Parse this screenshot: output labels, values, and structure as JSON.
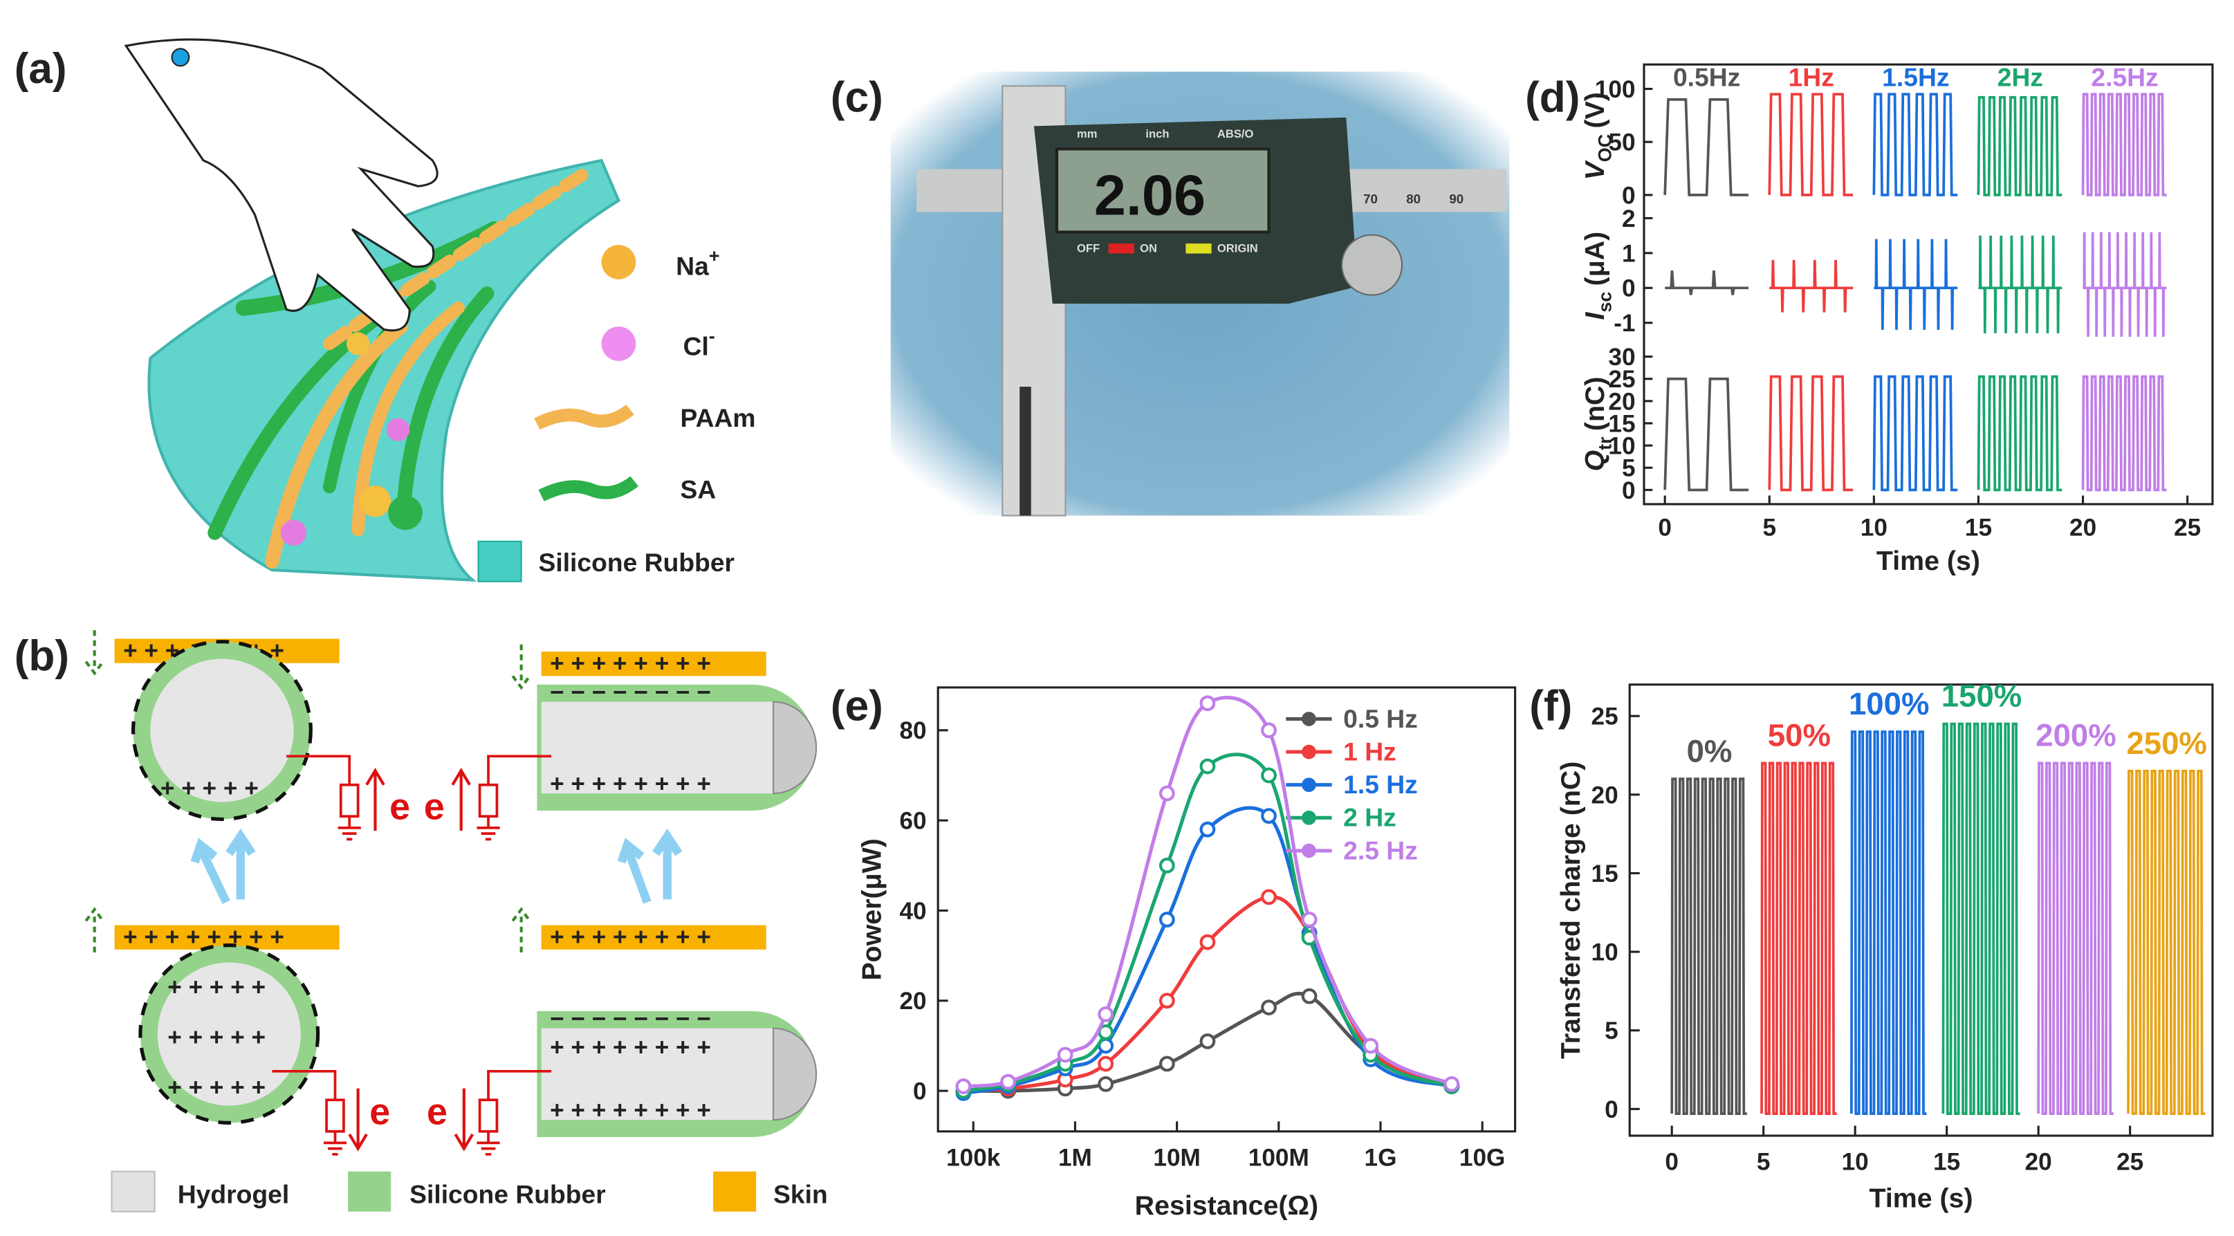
{
  "panel_a": {
    "label": "(a)",
    "ions": [
      {
        "name": "Na",
        "charge": "+"
      },
      {
        "name": "Cl",
        "charge": "-"
      }
    ],
    "materials": [
      "PAAm",
      "SA",
      "Silicone Rubber"
    ]
  },
  "panel_b": {
    "label": "(b)",
    "charges": {
      "plus": "+ + + + + + + +",
      "minus": "− − − − − − − −",
      "inner_plus": "+ + + + +"
    },
    "electron": "e",
    "legend": [
      "Hydrogel",
      "Silicone Rubber",
      "Skin"
    ]
  },
  "panel_c": {
    "label": "(c)",
    "reading": "2.06",
    "caliper_labels": [
      "mm",
      "inch",
      "ABS/O",
      "OFF",
      "ON",
      "ORIGIN"
    ],
    "scale_labels": [
      "70",
      "80",
      "90"
    ]
  },
  "chart_data": [
    {
      "type": "signal_stack",
      "panel_label": "(d)",
      "xlabel": "Time (s)",
      "xlim": [
        -1,
        26.2
      ],
      "xticks": [
        0,
        5,
        10,
        15,
        20,
        25
      ],
      "series": [
        {
          "name": "0.5Hz",
          "color": "#555555",
          "x": [
            0,
            4
          ],
          "cycles": 2
        },
        {
          "name": "1Hz",
          "color": "#f03c3c",
          "x": [
            5,
            9
          ],
          "cycles": 4
        },
        {
          "name": "1.5Hz",
          "color": "#1a6fdc",
          "x": [
            10,
            14
          ],
          "cycles": 6
        },
        {
          "name": "2Hz",
          "color": "#1aa66e",
          "x": [
            15,
            19
          ],
          "cycles": 8
        },
        {
          "name": "2.5Hz",
          "color": "#c07ee8",
          "x": [
            20,
            24
          ],
          "cycles": 10
        }
      ],
      "rows": [
        {
          "label": "V",
          "sub": "OC",
          "unit": "(V)",
          "kind": "pulse",
          "ylim": [
            -12,
            123
          ],
          "yticks": [
            0,
            50,
            100
          ],
          "peaks": [
            90,
            95,
            95,
            92,
            95
          ]
        },
        {
          "label": "I",
          "sub": "sc",
          "unit": "(μA)",
          "kind": "spike",
          "ylim": [
            -1.6,
            2.3
          ],
          "yticks": [
            -1,
            0,
            1,
            2
          ],
          "peaks": [
            0.5,
            0.8,
            1.4,
            1.5,
            1.6
          ],
          "troughs": [
            -0.2,
            -0.7,
            -1.2,
            -1.3,
            -1.4
          ]
        },
        {
          "label": "Q",
          "sub": "tr",
          "unit": "(nC)",
          "kind": "pulse",
          "ylim": [
            -3.2,
            32.9
          ],
          "yticks": [
            0,
            5,
            10,
            15,
            20,
            25,
            30
          ],
          "peaks": [
            25,
            25.5,
            25.5,
            25.5,
            25.5
          ]
        }
      ]
    },
    {
      "type": "line",
      "panel_label": "(e)",
      "xlabel": "Resistance(Ω)",
      "ylabel": "Power(μW)",
      "xscale": "log",
      "legend": "upper right",
      "x": [
        80000,
        220000,
        800000,
        2000000,
        8000000,
        20000000,
        80000000,
        200000000,
        800000000,
        5000000000
      ],
      "xlim": [
        45000,
        21000000000
      ],
      "xticks": [
        {
          "value": 100000,
          "label": "100k"
        },
        {
          "value": 1000000,
          "label": "1M"
        },
        {
          "value": 10000000,
          "label": "10M"
        },
        {
          "value": 100000000,
          "label": "100M"
        },
        {
          "value": 1000000000,
          "label": "1G"
        },
        {
          "value": 10000000000,
          "label": "10G"
        }
      ],
      "ylim": [
        -9,
        89.5
      ],
      "yticks": [
        0,
        20,
        40,
        60,
        80
      ],
      "series": [
        {
          "name": "0.5 Hz",
          "color": "#555555",
          "values": [
            0,
            0,
            0.5,
            1.5,
            6,
            11,
            18.5,
            21,
            8,
            1
          ]
        },
        {
          "name": "1 Hz",
          "color": "#f03c3c",
          "values": [
            0,
            0.5,
            2.5,
            6,
            20,
            33,
            43,
            35,
            9,
            1
          ]
        },
        {
          "name": "1.5 Hz",
          "color": "#1a6fdc",
          "values": [
            -0.5,
            1,
            5,
            10,
            38,
            58,
            61,
            35,
            7,
            1
          ]
        },
        {
          "name": "2 Hz",
          "color": "#1aa66e",
          "values": [
            0,
            1.5,
            6,
            13,
            50,
            72,
            70,
            34,
            8,
            1
          ]
        },
        {
          "name": "2.5 Hz",
          "color": "#c07ee8",
          "values": [
            1,
            2,
            8,
            17,
            66,
            86,
            80,
            38,
            10,
            1.5
          ]
        }
      ]
    },
    {
      "type": "signal",
      "panel_label": "(f)",
      "xlabel": "Time (s)",
      "ylabel": "Transfered charge (nC)",
      "xlim": [
        -2.3,
        29.5
      ],
      "xticks": [
        0,
        5,
        10,
        15,
        20,
        25
      ],
      "ylim": [
        -1.7,
        27
      ],
      "yticks": [
        0,
        5,
        10,
        15,
        20,
        25
      ],
      "series": [
        {
          "name": "0%",
          "color": "#555555",
          "x": [
            0,
            4.1
          ],
          "peak": 21,
          "min": -0.3,
          "cycles": 10
        },
        {
          "name": "50%",
          "color": "#f03c3c",
          "x": [
            4.9,
            9
          ],
          "peak": 22,
          "min": -0.3,
          "cycles": 10
        },
        {
          "name": "100%",
          "color": "#1a6fdc",
          "x": [
            9.8,
            13.9
          ],
          "peak": 24,
          "min": -0.3,
          "cycles": 10
        },
        {
          "name": "150%",
          "color": "#1aa66e",
          "x": [
            14.8,
            19
          ],
          "peak": 24.5,
          "min": -0.3,
          "cycles": 10
        },
        {
          "name": "200%",
          "color": "#c07ee8",
          "x": [
            20,
            24.1
          ],
          "peak": 22,
          "min": -0.3,
          "cycles": 10
        },
        {
          "name": "250%",
          "color": "#e8a317",
          "x": [
            24.9,
            29.1
          ],
          "peak": 21.5,
          "min": -0.3,
          "cycles": 10
        }
      ]
    }
  ]
}
